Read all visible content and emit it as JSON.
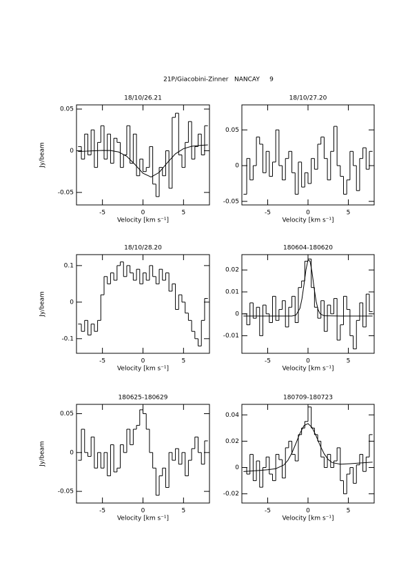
{
  "title": "21P/Giacobini-Zinner   NANCAY     9",
  "chart_data": [
    {
      "type": "line",
      "title": "18/10/26.21",
      "x_label": "Velocity [km s⁻¹]",
      "y_label": "Jy/beam",
      "x": [
        -7.8,
        -7.4,
        -7.0,
        -6.6,
        -6.2,
        -5.8,
        -5.4,
        -5.0,
        -4.6,
        -4.2,
        -3.8,
        -3.4,
        -3.0,
        -2.6,
        -2.2,
        -1.8,
        -1.4,
        -1.0,
        -0.6,
        -0.2,
        0.2,
        0.6,
        1.0,
        1.4,
        1.8,
        2.2,
        2.6,
        3.0,
        3.4,
        3.8,
        4.2,
        4.6,
        5.0,
        5.4,
        5.8,
        6.2,
        6.6,
        7.0,
        7.4,
        7.8
      ],
      "xlim": [
        -8.2,
        8.2
      ],
      "xticks": [
        -5,
        0,
        5
      ],
      "ylim": [
        -0.065,
        0.055
      ],
      "yticks": [
        -0.05,
        0,
        0.05
      ],
      "series": [
        {
          "style": "steps",
          "color": "#000000",
          "values": [
            0.005,
            -0.01,
            0.02,
            -0.005,
            0.025,
            -0.02,
            0.01,
            0.03,
            -0.01,
            0.02,
            -0.015,
            0.015,
            0.01,
            -0.02,
            -0.005,
            0.03,
            -0.015,
            0.02,
            -0.03,
            -0.01,
            -0.025,
            -0.02,
            0.005,
            -0.04,
            -0.055,
            -0.02,
            -0.03,
            0.0,
            -0.045,
            0.04,
            0.045,
            -0.005,
            -0.02,
            0.01,
            0.035,
            -0.01,
            0.005,
            0.02,
            -0.005,
            0.03
          ]
        },
        {
          "style": "line",
          "color": "#000000",
          "x": [
            -8,
            -7,
            -6,
            -5,
            -4,
            -3,
            -2,
            -1,
            0,
            1,
            2,
            3,
            4,
            5,
            6,
            7,
            8
          ],
          "values": [
            -0.001,
            -0.0005,
            0.0,
            0.0004,
            0.0003,
            -0.0015,
            -0.0067,
            -0.0164,
            -0.027,
            -0.0315,
            -0.026,
            -0.0144,
            -0.0037,
            0.0025,
            0.0053,
            0.0064,
            0.007
          ]
        }
      ]
    },
    {
      "type": "line",
      "title": "18/10/27.20",
      "x_label": "Velocity [km s⁻¹]",
      "x": [
        -7.8,
        -7.4,
        -7.0,
        -6.6,
        -6.2,
        -5.8,
        -5.4,
        -5.0,
        -4.6,
        -4.2,
        -3.8,
        -3.4,
        -3.0,
        -2.6,
        -2.2,
        -1.8,
        -1.4,
        -1.0,
        -0.6,
        -0.2,
        0.2,
        0.6,
        1.0,
        1.4,
        1.8,
        2.2,
        2.6,
        3.0,
        3.4,
        3.8,
        4.2,
        4.6,
        5.0,
        5.4,
        5.8,
        6.2,
        6.6,
        7.0,
        7.4,
        7.8
      ],
      "xlim": [
        -8.2,
        8.2
      ],
      "xticks": [
        -5,
        0,
        5
      ],
      "ylim": [
        -0.055,
        0.085
      ],
      "yticks": [
        -0.05,
        0,
        0.05
      ],
      "series": [
        {
          "style": "steps",
          "color": "#000000",
          "values": [
            -0.04,
            0.01,
            -0.02,
            0.0,
            0.04,
            0.03,
            -0.01,
            0.02,
            -0.015,
            0.005,
            0.05,
            0.0,
            -0.02,
            0.01,
            0.02,
            -0.01,
            -0.04,
            0.005,
            -0.03,
            -0.01,
            -0.025,
            0.01,
            -0.005,
            0.03,
            0.04,
            0.01,
            -0.02,
            0.02,
            0.055,
            0.0,
            -0.015,
            -0.04,
            -0.02,
            0.02,
            0.0,
            -0.035,
            0.01,
            0.025,
            -0.005,
            0.02
          ]
        }
      ]
    },
    {
      "type": "line",
      "title": "18/10/28.20",
      "x_label": "Velocity [km s⁻¹]",
      "y_label": "Jy/beam",
      "x": [
        -7.8,
        -7.4,
        -7.0,
        -6.6,
        -6.2,
        -5.8,
        -5.4,
        -5.0,
        -4.6,
        -4.2,
        -3.8,
        -3.4,
        -3.0,
        -2.6,
        -2.2,
        -1.8,
        -1.4,
        -1.0,
        -0.6,
        -0.2,
        0.2,
        0.6,
        1.0,
        1.4,
        1.8,
        2.2,
        2.6,
        3.0,
        3.4,
        3.8,
        4.2,
        4.6,
        5.0,
        5.4,
        5.8,
        6.2,
        6.6,
        7.0,
        7.4,
        7.8
      ],
      "xlim": [
        -8.2,
        8.2
      ],
      "xticks": [
        -5,
        0,
        5
      ],
      "ylim": [
        -0.14,
        0.13
      ],
      "yticks": [
        -0.1,
        0,
        0.1
      ],
      "series": [
        {
          "style": "steps",
          "color": "#000000",
          "values": [
            -0.06,
            -0.08,
            -0.05,
            -0.09,
            -0.06,
            -0.08,
            -0.05,
            0.02,
            0.07,
            0.05,
            0.08,
            0.06,
            0.1,
            0.11,
            0.07,
            0.1,
            0.08,
            0.06,
            0.09,
            0.05,
            0.08,
            0.06,
            0.1,
            0.07,
            0.05,
            0.09,
            0.06,
            0.08,
            0.03,
            0.05,
            -0.02,
            0.02,
            0.0,
            -0.03,
            -0.05,
            -0.08,
            -0.1,
            -0.12,
            -0.05,
            0.01
          ]
        }
      ]
    },
    {
      "type": "line",
      "title": "180604-180620",
      "x_label": "Velocity [km s⁻¹]",
      "x": [
        -7.8,
        -7.4,
        -7.0,
        -6.6,
        -6.2,
        -5.8,
        -5.4,
        -5.0,
        -4.6,
        -4.2,
        -3.8,
        -3.4,
        -3.0,
        -2.6,
        -2.2,
        -1.8,
        -1.4,
        -1.0,
        -0.6,
        -0.2,
        0.2,
        0.6,
        1.0,
        1.4,
        1.8,
        2.2,
        2.6,
        3.0,
        3.4,
        3.8,
        4.2,
        4.6,
        5.0,
        5.4,
        5.8,
        6.2,
        6.6,
        7.0,
        7.4,
        7.8
      ],
      "xlim": [
        -8.2,
        8.2
      ],
      "xticks": [
        -5,
        0,
        5
      ],
      "ylim": [
        -0.018,
        0.027
      ],
      "yticks": [
        -0.01,
        0,
        0.01,
        0.02
      ],
      "series": [
        {
          "style": "steps",
          "color": "#000000",
          "values": [
            0.0,
            -0.005,
            0.005,
            -0.002,
            0.003,
            -0.01,
            0.004,
            0.0,
            -0.004,
            0.008,
            -0.003,
            0.002,
            0.006,
            -0.006,
            0.003,
            0.008,
            -0.004,
            0.012,
            0.015,
            0.024,
            0.025,
            0.012,
            0.003,
            -0.002,
            0.006,
            -0.008,
            0.004,
            0.0,
            0.007,
            -0.012,
            -0.005,
            0.008,
            0.002,
            -0.01,
            -0.016,
            -0.003,
            0.005,
            -0.006,
            0.009,
            0.001
          ]
        },
        {
          "style": "line",
          "color": "#000000",
          "x": [
            -8,
            -4,
            -2,
            -1.5,
            -1,
            -0.75,
            -0.5,
            -0.25,
            0,
            0.25,
            0.5,
            0.75,
            1,
            1.25,
            1.5,
            2,
            4,
            8
          ],
          "values": [
            -0.001,
            -0.001,
            -0.001,
            -0.0006,
            0.0025,
            0.0069,
            0.0133,
            0.0202,
            0.0246,
            0.024,
            0.019,
            0.0119,
            0.0058,
            0.0019,
            0.0,
            -0.0009,
            -0.001,
            -0.001
          ]
        }
      ]
    },
    {
      "type": "line",
      "title": "180625-180629",
      "x_label": "Velocity [km s⁻¹]",
      "y_label": "Jy/beam",
      "x": [
        -7.8,
        -7.4,
        -7.0,
        -6.6,
        -6.2,
        -5.8,
        -5.4,
        -5.0,
        -4.6,
        -4.2,
        -3.8,
        -3.4,
        -3.0,
        -2.6,
        -2.2,
        -1.8,
        -1.4,
        -1.0,
        -0.6,
        -0.2,
        0.2,
        0.6,
        1.0,
        1.4,
        1.8,
        2.2,
        2.6,
        3.0,
        3.4,
        3.8,
        4.2,
        4.6,
        5.0,
        5.4,
        5.8,
        6.2,
        6.6,
        7.0,
        7.4,
        7.8
      ],
      "xlim": [
        -8.2,
        8.2
      ],
      "xticks": [
        -5,
        0,
        5
      ],
      "ylim": [
        -0.065,
        0.062
      ],
      "yticks": [
        -0.05,
        0,
        0.05
      ],
      "series": [
        {
          "style": "steps",
          "color": "#000000",
          "values": [
            -0.01,
            0.03,
            0.0,
            -0.005,
            0.02,
            -0.02,
            0.0,
            -0.02,
            0.0,
            -0.03,
            0.01,
            -0.025,
            -0.02,
            0.01,
            0.0,
            0.03,
            0.01,
            0.03,
            0.035,
            0.055,
            0.05,
            0.03,
            0.0,
            -0.02,
            -0.055,
            -0.03,
            -0.02,
            -0.045,
            0.0,
            -0.01,
            0.005,
            -0.015,
            0.0,
            -0.03,
            -0.01,
            0.005,
            0.02,
            0.0,
            -0.015,
            0.015
          ]
        }
      ]
    },
    {
      "type": "line",
      "title": "180709-180723",
      "x_label": "Velocity [km s⁻¹]",
      "x": [
        -7.8,
        -7.4,
        -7.0,
        -6.6,
        -6.2,
        -5.8,
        -5.4,
        -5.0,
        -4.6,
        -4.2,
        -3.8,
        -3.4,
        -3.0,
        -2.6,
        -2.2,
        -1.8,
        -1.4,
        -1.0,
        -0.6,
        -0.2,
        0.2,
        0.6,
        1.0,
        1.4,
        1.8,
        2.2,
        2.6,
        3.0,
        3.4,
        3.8,
        4.2,
        4.6,
        5.0,
        5.4,
        5.8,
        6.2,
        6.6,
        7.0,
        7.4,
        7.8
      ],
      "xlim": [
        -8.2,
        8.2
      ],
      "xticks": [
        -5,
        0,
        5
      ],
      "ylim": [
        -0.027,
        0.048
      ],
      "yticks": [
        -0.02,
        0,
        0.02,
        0.04
      ],
      "series": [
        {
          "style": "steps",
          "color": "#000000",
          "values": [
            0.0,
            -0.005,
            0.01,
            -0.01,
            0.005,
            -0.015,
            0.0,
            0.008,
            -0.005,
            -0.01,
            0.01,
            0.006,
            -0.008,
            0.015,
            0.02,
            0.01,
            0.005,
            0.025,
            0.03,
            0.035,
            0.046,
            0.03,
            0.025,
            0.02,
            0.008,
            0.0,
            0.01,
            0.0,
            0.005,
            0.015,
            -0.01,
            -0.02,
            -0.005,
            0.0,
            -0.012,
            0.002,
            0.01,
            -0.003,
            0.008,
            0.025
          ]
        },
        {
          "style": "line",
          "color": "#000000",
          "x": [
            -8,
            -6,
            -5,
            -4,
            -3,
            -2.5,
            -2,
            -1.5,
            -1,
            -0.5,
            0,
            0.5,
            1,
            1.5,
            2,
            2.5,
            3,
            4,
            5,
            6,
            8
          ],
          "values": [
            -0.0031,
            -0.0022,
            -0.0017,
            -0.0009,
            0.0019,
            0.0054,
            0.011,
            0.0183,
            0.026,
            0.0318,
            0.0334,
            0.0304,
            0.0241,
            0.0167,
            0.0104,
            0.0061,
            0.0037,
            0.0025,
            0.0028,
            0.0032,
            0.0041
          ]
        }
      ]
    }
  ]
}
